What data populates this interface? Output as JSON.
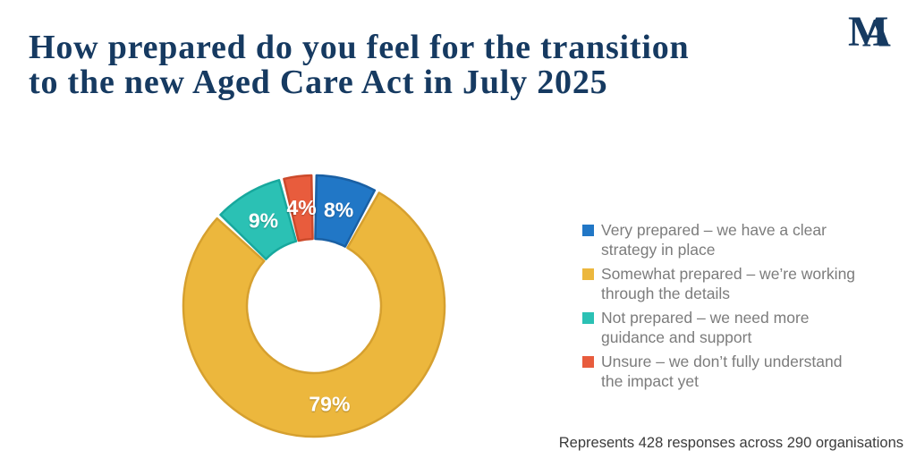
{
  "header": {
    "title_line1": "How prepared do you feel for the transition",
    "title_line2": "to the new Aged Care Act in July 2025",
    "title_color": "#163a61",
    "logo": {
      "letter1": "M",
      "letter2": "A",
      "color": "#163a61"
    }
  },
  "chart_data": {
    "type": "pie",
    "subtype": "donut",
    "title": "How prepared do you feel for the transition to the new Aged Care Act in July 2025",
    "start_angle_deg": 0,
    "direction": "clockwise",
    "inner_radius_ratio": 0.51,
    "legend_position": "right",
    "label_color": "#ffffff",
    "series": [
      {
        "label": "Very prepared – we have a clear strategy in place",
        "value": 8,
        "display": "8%",
        "color": "#2177c6",
        "border_color": "#1a60a4"
      },
      {
        "label": "Somewhat prepared – we’re working through the details",
        "value": 79,
        "display": "79%",
        "color": "#ecb73d",
        "border_color": "#d6a02f"
      },
      {
        "label": "Not prepared – we need more guidance and support",
        "value": 9,
        "display": "9%",
        "color": "#2bc1b4",
        "border_color": "#17a89d"
      },
      {
        "label": "Unsure – we don’t fully understand the impact yet",
        "value": 4,
        "display": "4%",
        "color": "#e85c3d",
        "border_color": "#cc4a2b"
      }
    ]
  },
  "footer": {
    "note": "Represents 428 responses across 290 organisations"
  }
}
